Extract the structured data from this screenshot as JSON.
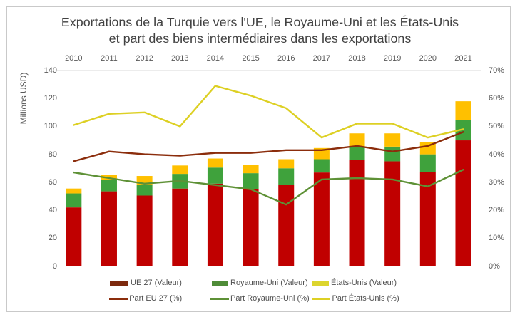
{
  "chart_data": {
    "type": "bar",
    "title": "Exportations de la Turquie vers l'UE, le Royaume-Uni et les États-Unis et part des biens intermédiaires dans les exportations",
    "title_line1": "Exportations de la Turquie vers l'UE, le Royaume-Uni et les États-Unis",
    "title_line2": "et part des biens intermédiaires dans les exportations",
    "ylabel": "Millions USD)",
    "categories": [
      2010,
      2011,
      2012,
      2013,
      2014,
      2015,
      2016,
      2017,
      2018,
      2019,
      2020,
      2021
    ],
    "series": [
      {
        "name": "UE 27 (Valeur)",
        "type": "bar",
        "axis": "left",
        "color": "#c00000",
        "values": [
          42,
          53.5,
          50.5,
          55.5,
          59,
          55,
          58,
          67,
          76,
          75,
          67.5,
          90
        ]
      },
      {
        "name": "Royaume-Uni (Valeur)",
        "type": "bar",
        "axis": "left",
        "color": "#3fa23c",
        "values": [
          10,
          8,
          7.5,
          10.5,
          11.5,
          11.5,
          12,
          9.5,
          9.5,
          10.5,
          12.5,
          14.5
        ]
      },
      {
        "name": "États-Unis (Valeur)",
        "type": "bar",
        "axis": "left",
        "color": "#ffc000",
        "values": [
          3.5,
          4,
          6.5,
          6,
          6.5,
          6,
          6.5,
          8,
          9.5,
          9.5,
          9,
          13.5
        ]
      },
      {
        "name": "Part EU 27 (%)",
        "type": "line",
        "axis": "right",
        "color": "#8b2d0c",
        "values": [
          37.5,
          41,
          40,
          39.5,
          40.5,
          40.5,
          41.5,
          41.5,
          43,
          41,
          43,
          48
        ]
      },
      {
        "name": "Part Royaume-Uni (%)",
        "type": "line",
        "axis": "right",
        "color": "#5e9136",
        "values": [
          33.5,
          31.5,
          29.5,
          30.5,
          29,
          27.5,
          22,
          31,
          31.5,
          31,
          28.5,
          34.5
        ]
      },
      {
        "name": "Part États-Unis (%)",
        "type": "line",
        "axis": "right",
        "color": "#ddd024",
        "values": [
          50.5,
          54.5,
          55,
          50,
          64.5,
          61,
          56.5,
          46,
          51,
          51,
          46,
          49
        ]
      }
    ],
    "left_axis": {
      "min": 0,
      "max": 140,
      "step": 20,
      "tick_labels": [
        "0",
        "20",
        "40",
        "60",
        "80",
        "100",
        "120",
        "140"
      ]
    },
    "right_axis": {
      "min": 0,
      "max": 70,
      "step": 10,
      "tick_labels": [
        "0%",
        "10%",
        "20%",
        "30%",
        "40%",
        "50%",
        "60%",
        "70%"
      ]
    },
    "grid": "top-line-only",
    "legend_position": "bottom",
    "legend": {
      "row1": [
        {
          "label": "UE 27 (Valeur)",
          "swatch": "bar",
          "color": "#7d2a0e"
        },
        {
          "label": "Royaume-Uni (Valeur)",
          "swatch": "bar",
          "color": "#4f8c38"
        },
        {
          "label": "États-Unis (Valeur)",
          "swatch": "bar",
          "color": "#dcd52e"
        }
      ],
      "row2": [
        {
          "label": "Part EU 27 (%)",
          "swatch": "line",
          "color": "#8b2d0c"
        },
        {
          "label": "Part Royaume-Uni (%)",
          "swatch": "line",
          "color": "#5e9136"
        },
        {
          "label": "Part États-Unis (%)",
          "swatch": "line",
          "color": "#ddd024"
        }
      ]
    },
    "colors": {
      "bar_eu": "#c00000",
      "bar_uk": "#3fa23c",
      "bar_us": "#ffc000",
      "line_eu": "#8b2d0c",
      "line_uk": "#5e9136",
      "line_us": "#ddd024",
      "gridline": "#d9d9d9",
      "border": "#c9c9c9",
      "title_text": "#414141",
      "axis_text": "#595959"
    }
  }
}
